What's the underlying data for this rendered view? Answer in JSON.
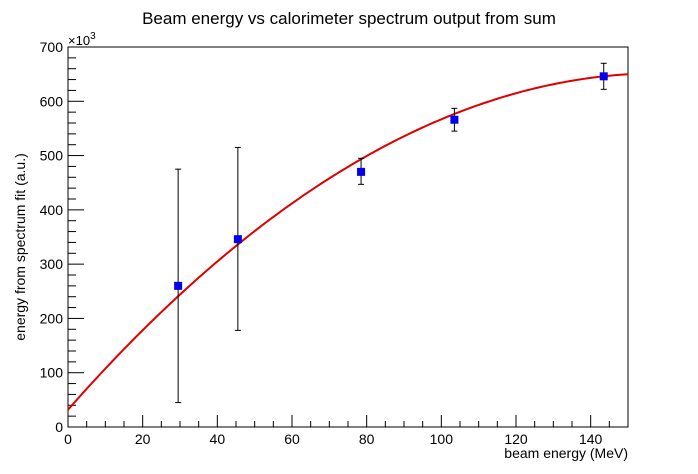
{
  "chart_data": {
    "type": "scatter",
    "title": "Beam energy vs calorimeter spectrum output from sum",
    "xlabel": "beam energy (MeV)",
    "ylabel": "energy from spectrum fit (a.u.)",
    "y_multiplier_label": "×10",
    "y_multiplier_exponent": "3",
    "xlim": [
      0,
      150
    ],
    "ylim": [
      0,
      700
    ],
    "x_ticks": [
      0,
      20,
      40,
      60,
      80,
      100,
      120,
      140
    ],
    "y_ticks": [
      0,
      100,
      200,
      300,
      400,
      500,
      600,
      700
    ],
    "grid": false,
    "points": [
      {
        "x": 29.5,
        "y": 260,
        "err_low": 45,
        "err_high": 475
      },
      {
        "x": 45.5,
        "y": 346,
        "err_low": 178,
        "err_high": 515
      },
      {
        "x": 78.5,
        "y": 470,
        "err_low": 447,
        "err_high": 495
      },
      {
        "x": 103.5,
        "y": 566,
        "err_low": 545,
        "err_high": 587
      },
      {
        "x": 143.5,
        "y": 646,
        "err_low": 622,
        "err_high": 670
      }
    ],
    "fit": {
      "type": "line",
      "color": "#dd0000",
      "coefficients": [
        31.86,
        7.81,
        -0.0246
      ],
      "x_range": [
        0,
        150
      ]
    },
    "marker_color": "#0000ee"
  }
}
